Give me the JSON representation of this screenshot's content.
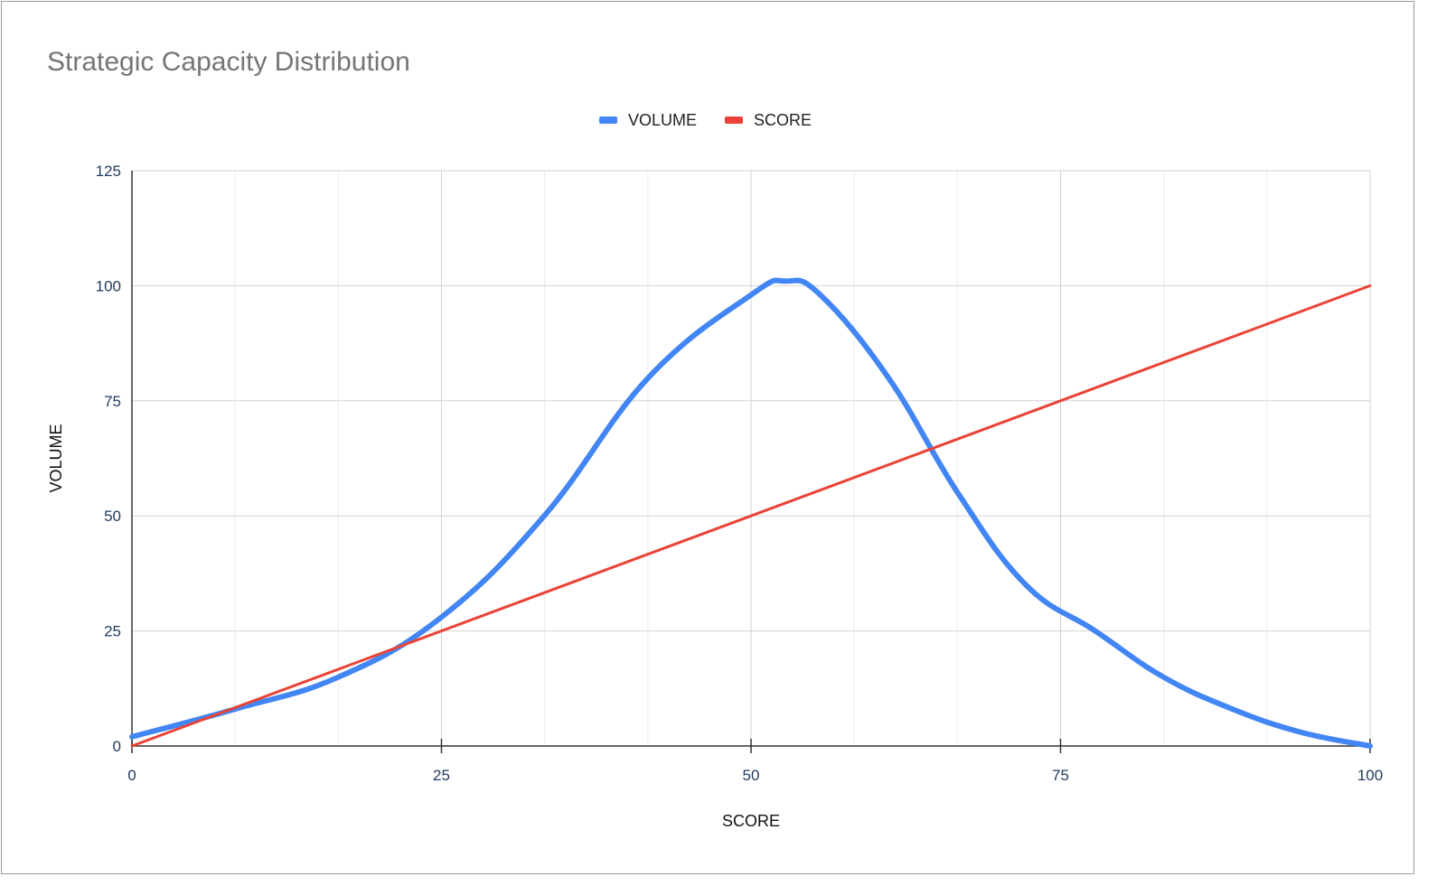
{
  "chart_data": {
    "type": "line",
    "title": "Strategic Capacity Distribution",
    "xlabel": "SCORE",
    "ylabel": "VOLUME",
    "xlim": [
      0,
      100
    ],
    "ylim": [
      0,
      125
    ],
    "x_ticks": [
      0,
      25,
      50,
      75,
      100
    ],
    "y_ticks": [
      0,
      25,
      50,
      75,
      100,
      125
    ],
    "x_tick_labels": [
      "0",
      "25",
      "50",
      "75",
      "100"
    ],
    "y_tick_labels": [
      "0",
      "25",
      "50",
      "75",
      "100",
      "125"
    ],
    "grid": true,
    "legend_position": "top-center",
    "series": [
      {
        "name": "VOLUME",
        "color": "#4285f4",
        "smooth": true,
        "x": [
          0,
          8.3,
          16.7,
          25,
          33.3,
          41.7,
          50,
          52.8,
          55.6,
          61.1,
          66.7,
          72.2,
          77.8,
          83.3,
          88.9,
          94.4,
          100
        ],
        "y": [
          2,
          8,
          15,
          28,
          50,
          80,
          98,
          101,
          98,
          80,
          55,
          35,
          25,
          15,
          8,
          3,
          0
        ]
      },
      {
        "name": "SCORE",
        "color": "#ea4335",
        "smooth": false,
        "x": [
          0,
          100
        ],
        "y": [
          0,
          100
        ]
      }
    ]
  }
}
